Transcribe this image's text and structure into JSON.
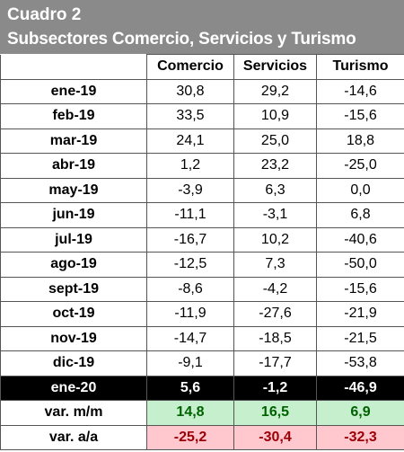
{
  "header": {
    "title": "Cuadro 2",
    "subtitle": "Subsectores Comercio, Servicios y Turismo"
  },
  "table": {
    "columns": [
      "Comercio",
      "Servicios",
      "Turismo"
    ],
    "rows": [
      [
        "ene-19",
        "30,8",
        "29,2",
        "-14,6"
      ],
      [
        "feb-19",
        "33,5",
        "10,9",
        "-15,6"
      ],
      [
        "mar-19",
        "24,1",
        "25,0",
        "18,8"
      ],
      [
        "abr-19",
        "1,2",
        "23,2",
        "-25,0"
      ],
      [
        "may-19",
        "-3,9",
        "6,3",
        "0,0"
      ],
      [
        "jun-19",
        "-11,1",
        "-3,1",
        "6,8"
      ],
      [
        "jul-19",
        "-16,7",
        "10,2",
        "-40,6"
      ],
      [
        "ago-19",
        "-12,5",
        "7,3",
        "-50,0"
      ],
      [
        "sept-19",
        "-8,6",
        "-4,2",
        "-15,6"
      ],
      [
        "oct-19",
        "-11,9",
        "-27,6",
        "-21,9"
      ],
      [
        "nov-19",
        "-14,7",
        "-18,5",
        "-21,5"
      ],
      [
        "dic-19",
        "-9,1",
        "-17,7",
        "-53,8"
      ],
      [
        "ene-20",
        "5,6",
        "-1,2",
        "-46,9"
      ],
      [
        "var. m/m",
        "14,8",
        "16,5",
        "6,9"
      ],
      [
        "var. a/a",
        "-25,2",
        "-30,4",
        "-32,3"
      ]
    ]
  }
}
